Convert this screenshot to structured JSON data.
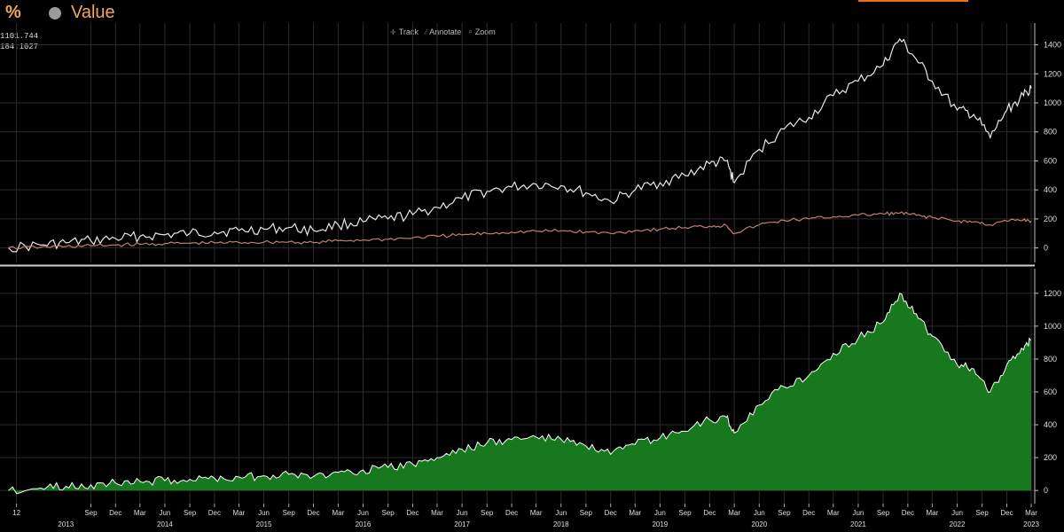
{
  "header": {
    "percent_symbol": "%",
    "value_label": "Value",
    "readout_1": "1101.744",
    "readout_2": "184.1027"
  },
  "toolbar": {
    "track_label": "Track",
    "annotate_label": "Annotate",
    "zoom_label": "Zoom"
  },
  "colors": {
    "background": "#000000",
    "grid": "#2a2a2a",
    "white_line": "#e8e8e8",
    "brown_line": "#c08070",
    "area_fill": "#17781d",
    "area_stroke": "#ffffff",
    "accent_orange": "#f0a860"
  },
  "chart_data": [
    {
      "type": "line",
      "grid": true,
      "ylim": [
        -100,
        1550
      ],
      "yticks": [
        0,
        200,
        400,
        600,
        800,
        1000,
        1200,
        1400
      ],
      "x_dates": [
        "2012-11",
        "2013-03",
        "2013-06",
        "2013-09",
        "2013-12",
        "2014-03",
        "2014-06",
        "2014-09",
        "2014-12",
        "2015-03",
        "2015-06",
        "2015-09",
        "2015-12",
        "2016-03",
        "2016-06",
        "2016-09",
        "2016-12",
        "2017-03",
        "2017-06",
        "2017-09",
        "2017-12",
        "2018-03",
        "2018-06",
        "2018-09",
        "2018-12",
        "2019-03",
        "2019-06",
        "2019-09",
        "2019-12",
        "2020-02",
        "2020-03",
        "2020-06",
        "2020-09",
        "2020-12",
        "2021-03",
        "2021-06",
        "2021-09",
        "2021-11",
        "2022-01",
        "2022-03",
        "2022-06",
        "2022-08",
        "2022-10",
        "2022-12",
        "2023-02",
        "2023-03"
      ],
      "series": [
        {
          "color": "#e8e8e8",
          "values": [
            0,
            20,
            35,
            50,
            65,
            80,
            90,
            100,
            110,
            120,
            130,
            140,
            120,
            160,
            180,
            200,
            230,
            280,
            340,
            390,
            420,
            440,
            430,
            380,
            320,
            400,
            450,
            500,
            580,
            600,
            450,
            680,
            820,
            900,
            1050,
            1150,
            1260,
            1440,
            1300,
            1150,
            950,
            920,
            760,
            950,
            1050,
            1100
          ]
        },
        {
          "color": "#c08070",
          "values": [
            0,
            5,
            10,
            15,
            20,
            25,
            30,
            32,
            35,
            38,
            40,
            42,
            35,
            50,
            55,
            60,
            70,
            80,
            90,
            100,
            110,
            115,
            118,
            110,
            100,
            120,
            130,
            140,
            150,
            155,
            100,
            160,
            190,
            200,
            215,
            225,
            235,
            240,
            225,
            210,
            185,
            180,
            160,
            185,
            195,
            185
          ]
        }
      ]
    },
    {
      "type": "area",
      "grid": true,
      "ylim": [
        -80,
        1350
      ],
      "yticks": [
        0,
        200,
        400,
        600,
        800,
        1000,
        1200
      ],
      "x_dates": [
        "2012-11",
        "2013-03",
        "2013-06",
        "2013-09",
        "2013-12",
        "2014-03",
        "2014-06",
        "2014-09",
        "2014-12",
        "2015-03",
        "2015-06",
        "2015-09",
        "2015-12",
        "2016-03",
        "2016-06",
        "2016-09",
        "2016-12",
        "2017-03",
        "2017-06",
        "2017-09",
        "2017-12",
        "2018-03",
        "2018-06",
        "2018-09",
        "2018-12",
        "2019-03",
        "2019-06",
        "2019-09",
        "2019-12",
        "2020-02",
        "2020-03",
        "2020-06",
        "2020-09",
        "2020-12",
        "2021-03",
        "2021-06",
        "2021-09",
        "2021-11",
        "2022-01",
        "2022-03",
        "2022-06",
        "2022-08",
        "2022-10",
        "2022-12",
        "2023-02",
        "2023-03"
      ],
      "values": [
        0,
        15,
        25,
        35,
        45,
        55,
        60,
        68,
        75,
        82,
        90,
        98,
        85,
        110,
        125,
        140,
        160,
        200,
        250,
        290,
        310,
        325,
        312,
        270,
        220,
        280,
        320,
        360,
        430,
        445,
        350,
        520,
        630,
        700,
        835,
        925,
        1025,
        1200,
        1075,
        940,
        765,
        740,
        600,
        765,
        855,
        915
      ]
    }
  ],
  "x_axis": {
    "month_ticks": [
      {
        "label": "12",
        "date": "2012-12"
      },
      {
        "label": "Sep",
        "date": "2013-09"
      },
      {
        "label": "Dec",
        "date": "2013-12"
      },
      {
        "label": "Mar",
        "date": "2014-03"
      },
      {
        "label": "Jun",
        "date": "2014-06"
      },
      {
        "label": "Sep",
        "date": "2014-09"
      },
      {
        "label": "Dec",
        "date": "2014-12"
      },
      {
        "label": "Mar",
        "date": "2015-03"
      },
      {
        "label": "Jun",
        "date": "2015-06"
      },
      {
        "label": "Sep",
        "date": "2015-09"
      },
      {
        "label": "Dec",
        "date": "2015-12"
      },
      {
        "label": "Mar",
        "date": "2016-03"
      },
      {
        "label": "Jun",
        "date": "2016-06"
      },
      {
        "label": "Sep",
        "date": "2016-09"
      },
      {
        "label": "Dec",
        "date": "2016-12"
      },
      {
        "label": "Mar",
        "date": "2017-03"
      },
      {
        "label": "Jun",
        "date": "2017-06"
      },
      {
        "label": "Sep",
        "date": "2017-09"
      },
      {
        "label": "Dec",
        "date": "2017-12"
      },
      {
        "label": "Mar",
        "date": "2018-03"
      },
      {
        "label": "Jun",
        "date": "2018-06"
      },
      {
        "label": "Sep",
        "date": "2018-09"
      },
      {
        "label": "Dec",
        "date": "2018-12"
      },
      {
        "label": "Mar",
        "date": "2019-03"
      },
      {
        "label": "Jun",
        "date": "2019-06"
      },
      {
        "label": "Sep",
        "date": "2019-09"
      },
      {
        "label": "Dec",
        "date": "2019-12"
      },
      {
        "label": "Mar",
        "date": "2020-03"
      },
      {
        "label": "Jun",
        "date": "2020-06"
      },
      {
        "label": "Sep",
        "date": "2020-09"
      },
      {
        "label": "Dec",
        "date": "2020-12"
      },
      {
        "label": "Mar",
        "date": "2021-03"
      },
      {
        "label": "Jun",
        "date": "2021-06"
      },
      {
        "label": "Sep",
        "date": "2021-09"
      },
      {
        "label": "Dec",
        "date": "2021-12"
      },
      {
        "label": "Mar",
        "date": "2022-03"
      },
      {
        "label": "Jun",
        "date": "2022-06"
      },
      {
        "label": "Sep",
        "date": "2022-09"
      },
      {
        "label": "Dec",
        "date": "2022-12"
      },
      {
        "label": "Mar",
        "date": "2023-03"
      }
    ],
    "year_labels": [
      "2013",
      "2014",
      "2015",
      "2016",
      "2017",
      "2018",
      "2019",
      "2020",
      "2021",
      "2022",
      "2023"
    ]
  }
}
